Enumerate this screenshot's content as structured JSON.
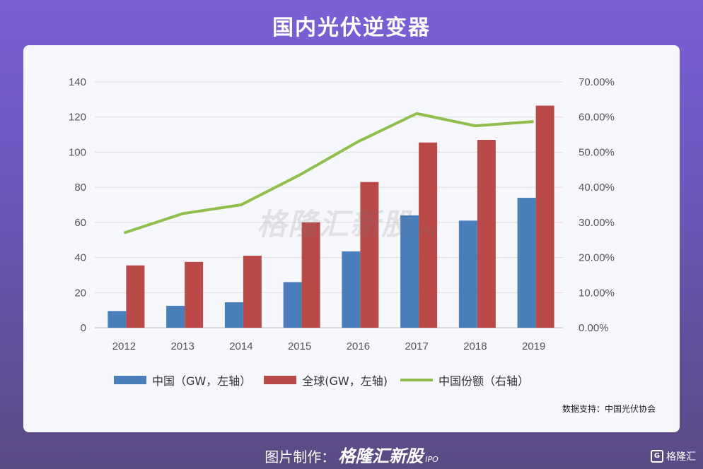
{
  "header": {
    "title": "国内光伏逆变器"
  },
  "chart_data": {
    "type": "bar",
    "categories": [
      "2012",
      "2013",
      "2014",
      "2015",
      "2016",
      "2017",
      "2018",
      "2019"
    ],
    "series": [
      {
        "name": "中国（GW，左轴）",
        "type": "bar",
        "axis": "left",
        "color": "#4a7ebb",
        "values": [
          9.5,
          12.5,
          14.5,
          26,
          43.5,
          64,
          61,
          74
        ]
      },
      {
        "name": "全球(GW，左轴)",
        "type": "bar",
        "axis": "left",
        "color": "#b94a48",
        "values": [
          35.5,
          37.5,
          41,
          60,
          83,
          105.5,
          107,
          126.5
        ]
      },
      {
        "name": "中国份额（右轴）",
        "type": "line",
        "axis": "right",
        "color": "#8fbe4c",
        "values": [
          0.27,
          0.325,
          0.35,
          0.435,
          0.53,
          0.61,
          0.575,
          0.587
        ]
      }
    ],
    "y_left": {
      "min": 0,
      "max": 140,
      "ticks": [
        "0",
        "20",
        "40",
        "60",
        "80",
        "100",
        "120",
        "140"
      ]
    },
    "y_right": {
      "min": 0,
      "max": 0.7,
      "ticks": [
        "0.00%",
        "10.00%",
        "20.00%",
        "30.00%",
        "40.00%",
        "50.00%",
        "60.00%",
        "70.00%"
      ]
    },
    "grid": true,
    "legend_position": "bottom"
  },
  "watermark": {
    "text": "格隆汇新股",
    "sub": "IPO"
  },
  "source_note": "数据支持：中国光伏协会",
  "footer": {
    "credit_label": "图片制作：",
    "brand": "格隆汇新股",
    "brand_sub": "IPO"
  },
  "corner_logo": {
    "icon": "G",
    "text": "格隆汇"
  }
}
